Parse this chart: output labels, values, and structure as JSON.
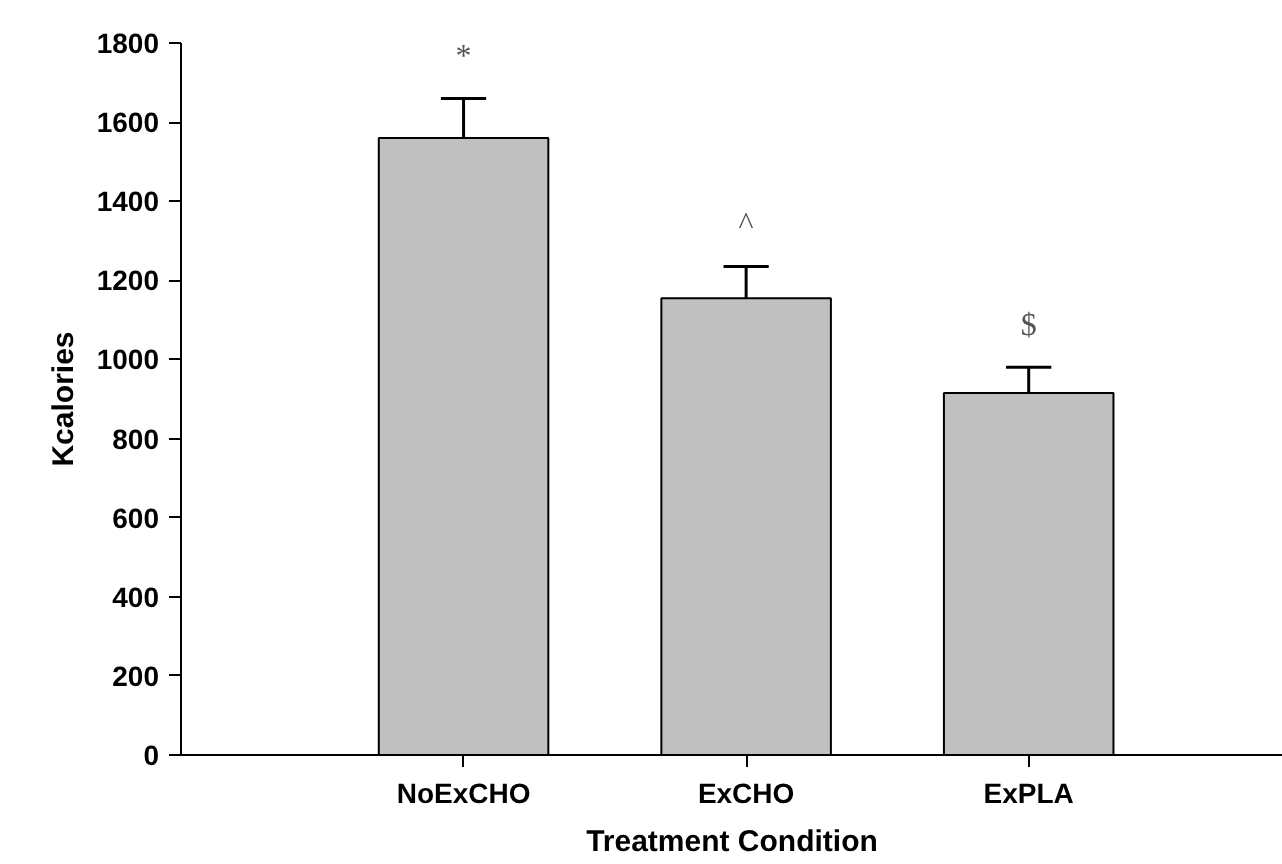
{
  "chart_data": {
    "type": "bar",
    "xlabel": "Treatment Condition",
    "ylabel": "Kcalories",
    "categories": [
      "NoExCHO",
      "ExCHO",
      "ExPLA"
    ],
    "values": [
      1560,
      1155,
      915
    ],
    "color": "#c0c0c0",
    "errors": [
      [
        1560,
        1660
      ],
      [
        1155,
        1235
      ],
      [
        915,
        980
      ]
    ],
    "ylim": [
      0,
      1800
    ],
    "yticks": [
      0,
      200,
      400,
      600,
      800,
      1000,
      1200,
      1400,
      1600,
      1800
    ],
    "grid": false,
    "annotations": [
      {
        "text": "*",
        "x": "NoExCHO",
        "y": 1660
      },
      {
        "text": "^",
        "x": "ExCHO",
        "y": 1235
      },
      {
        "text": "$",
        "x": "ExPLA",
        "y": 980
      }
    ]
  }
}
